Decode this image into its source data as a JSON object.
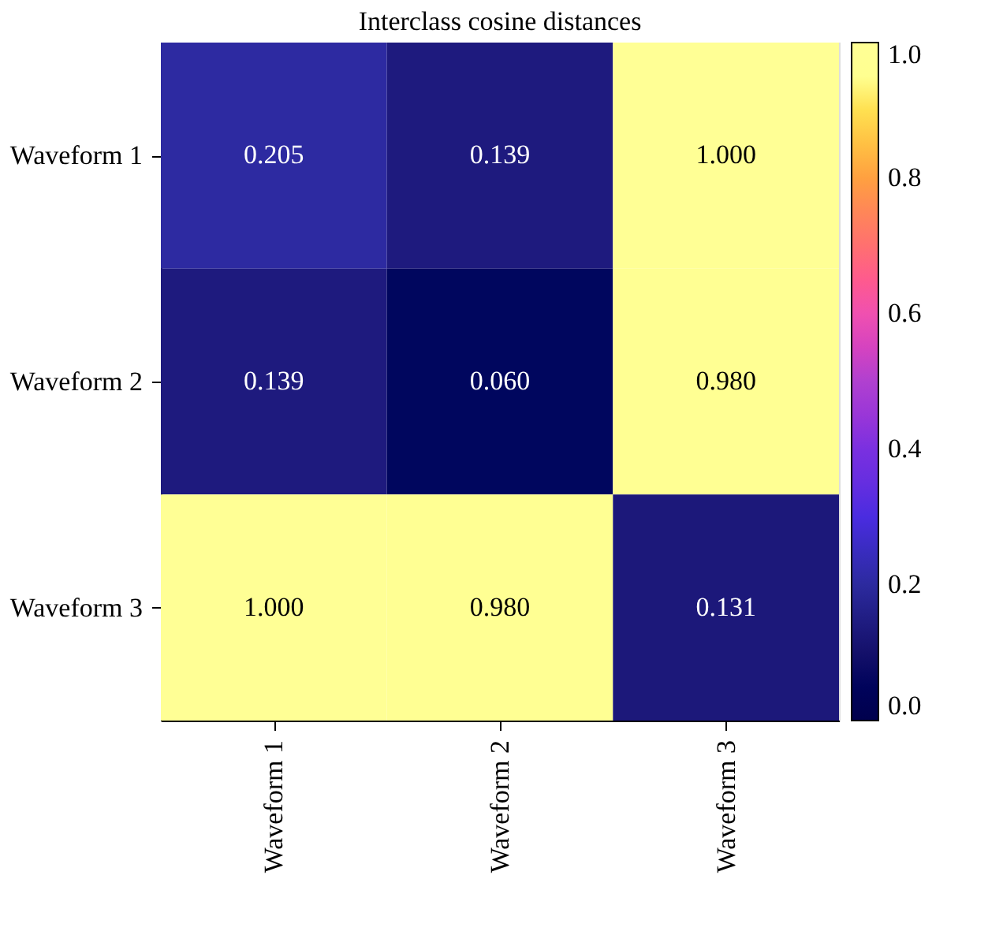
{
  "chart_data": {
    "type": "heatmap",
    "title": "Interclass cosine distances",
    "categories": [
      "Waveform 1",
      "Waveform 2",
      "Waveform 3"
    ],
    "y_categories": [
      "Waveform 1",
      "Waveform 2",
      "Waveform 3"
    ],
    "cells": [
      [
        0.205,
        0.139,
        1.0
      ],
      [
        0.139,
        0.06,
        0.98
      ],
      [
        1.0,
        0.98,
        0.131
      ]
    ],
    "cell_labels": [
      [
        "0.205",
        "0.139",
        "1.000"
      ],
      [
        "0.139",
        "0.060",
        "0.980"
      ],
      [
        "1.000",
        "0.980",
        "0.131"
      ]
    ],
    "clim": [
      0.0,
      1.0
    ],
    "cticks": [
      {
        "value": 0.0,
        "label": "0.0"
      },
      {
        "value": 0.2,
        "label": "0.2"
      },
      {
        "value": 0.4,
        "label": "0.4"
      },
      {
        "value": 0.6,
        "label": "0.6"
      },
      {
        "value": 0.8,
        "label": "0.8"
      },
      {
        "value": 1.0,
        "label": "1.0"
      }
    ],
    "data_labels": true
  }
}
